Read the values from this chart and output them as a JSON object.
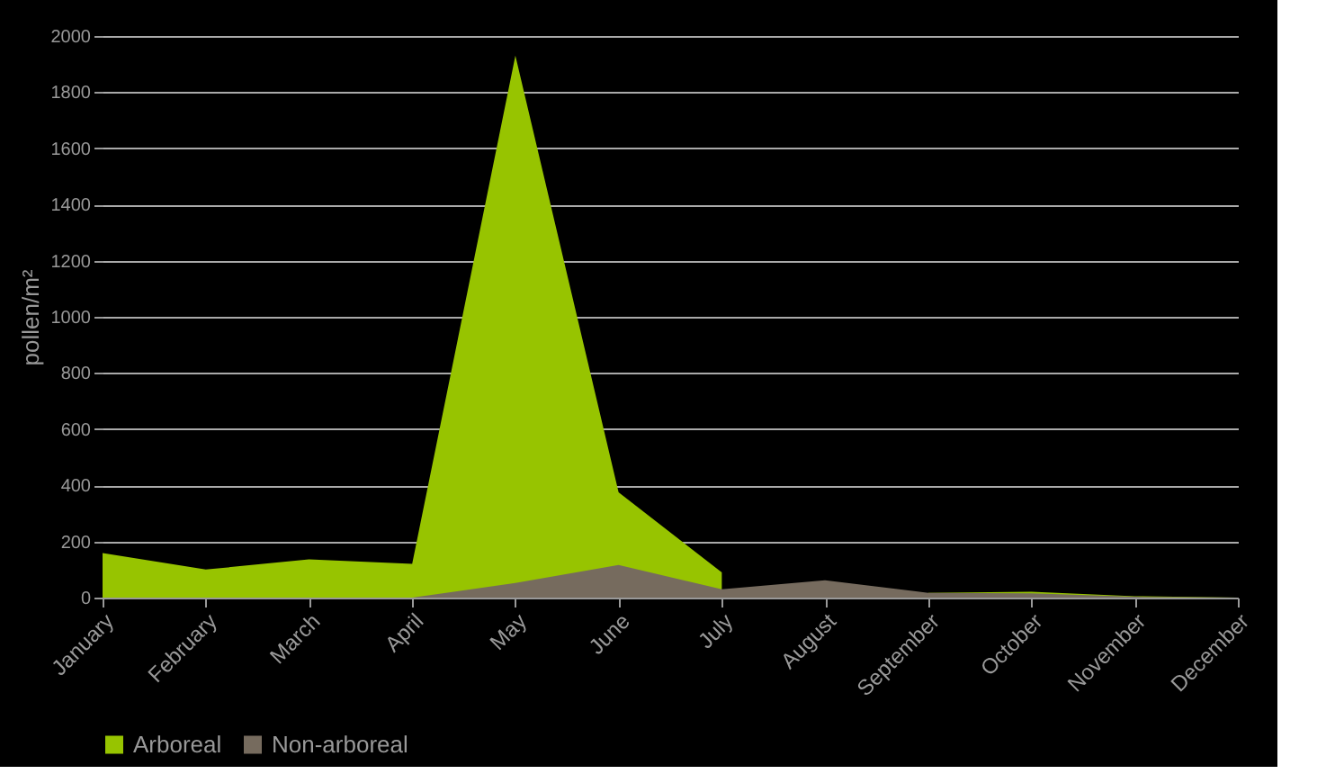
{
  "chart_data": {
    "type": "area",
    "ylabel": "pollen/m²",
    "categories": [
      "January",
      "February",
      "March",
      "April",
      "May",
      "June",
      "July",
      "August",
      "September",
      "October",
      "November",
      "December"
    ],
    "series": [
      {
        "name": "Arboreal",
        "color": "#97c400",
        "values": [
          159,
          100,
          136,
          120,
          1930,
          375,
          90,
          null,
          17,
          21,
          5,
          0
        ]
      },
      {
        "name": "Non-arboreal",
        "color": "#766b5e",
        "values": [
          0,
          0,
          0,
          0,
          52,
          116,
          30,
          62,
          17,
          15,
          3,
          0
        ]
      }
    ],
    "ylim": [
      0,
      2000
    ],
    "yticks": [
      0,
      200,
      400,
      600,
      800,
      1000,
      1200,
      1400,
      1600,
      1800,
      2000
    ],
    "grid": "y",
    "legend": "bottom"
  }
}
